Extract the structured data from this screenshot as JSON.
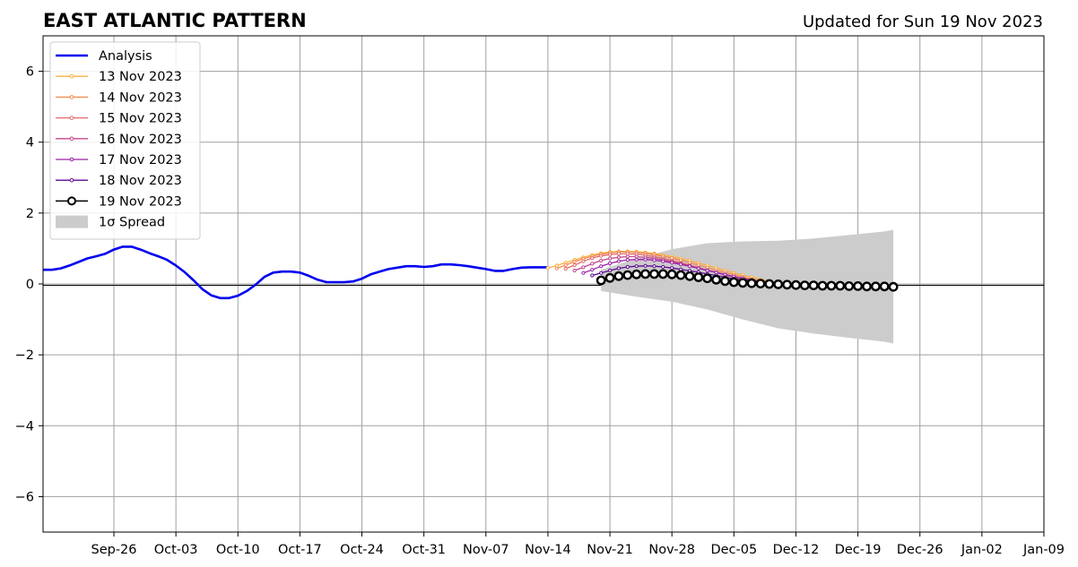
{
  "chart_data": {
    "type": "line",
    "title": "EAST ATLANTIC PATTERN",
    "subtitle": "Updated for Sun 19 Nov 2023",
    "xlim": [
      "2023-09-18",
      "2024-01-09"
    ],
    "ylim": [
      -7,
      7
    ],
    "x_ticks": [
      "Sep-26",
      "Oct-03",
      "Oct-10",
      "Oct-17",
      "Oct-24",
      "Oct-31",
      "Nov-07",
      "Nov-14",
      "Nov-21",
      "Nov-28",
      "Dec-05",
      "Dec-12",
      "Dec-19",
      "Dec-26",
      "Jan-02",
      "Jan-09"
    ],
    "y_ticks": [
      6,
      4,
      2,
      0,
      -2,
      -4,
      -6
    ],
    "y_tick_labels": [
      "6",
      "4",
      "2",
      "0",
      "−2",
      "−4",
      "−6"
    ],
    "grid": true,
    "legend": {
      "position": "top-left",
      "entries": [
        "Analysis",
        "13 Nov 2023",
        "14 Nov 2023",
        "15 Nov 2023",
        "16 Nov 2023",
        "17 Nov 2023",
        "18 Nov 2023",
        "19 Nov 2023",
        "1σ Spread"
      ]
    },
    "colors": {
      "analysis": "#0000ee",
      "f13": "#fbb040",
      "f14": "#f3894e",
      "f15": "#e26a6a",
      "f16": "#c2478e",
      "f17": "#9b22a8",
      "f18": "#5c0a91",
      "f19": "#000000",
      "spread": "#cccccc",
      "grid": "#a0a0a0"
    },
    "analysis": {
      "x": [
        "2023-09-18",
        "2023-09-19",
        "2023-09-20",
        "2023-09-21",
        "2023-09-22",
        "2023-09-23",
        "2023-09-24",
        "2023-09-25",
        "2023-09-26",
        "2023-09-27",
        "2023-09-28",
        "2023-09-29",
        "2023-09-30",
        "2023-10-01",
        "2023-10-02",
        "2023-10-03",
        "2023-10-04",
        "2023-10-05",
        "2023-10-06",
        "2023-10-07",
        "2023-10-08",
        "2023-10-09",
        "2023-10-10",
        "2023-10-11",
        "2023-10-12",
        "2023-10-13",
        "2023-10-14",
        "2023-10-15",
        "2023-10-16",
        "2023-10-17",
        "2023-10-18",
        "2023-10-19",
        "2023-10-20",
        "2023-10-21",
        "2023-10-22",
        "2023-10-23",
        "2023-10-24",
        "2023-10-25",
        "2023-10-26",
        "2023-10-27",
        "2023-10-28",
        "2023-10-29",
        "2023-10-30",
        "2023-10-31",
        "2023-11-01",
        "2023-11-02",
        "2023-11-03",
        "2023-11-04",
        "2023-11-05",
        "2023-11-06",
        "2023-11-07",
        "2023-11-08",
        "2023-11-09",
        "2023-11-10",
        "2023-11-11",
        "2023-11-12",
        "2023-11-13",
        "2023-11-14"
      ],
      "y": [
        0.4,
        0.4,
        0.44,
        0.52,
        0.62,
        0.72,
        0.78,
        0.85,
        0.97,
        1.05,
        1.05,
        0.97,
        0.87,
        0.78,
        0.68,
        0.52,
        0.33,
        0.1,
        -0.15,
        -0.32,
        -0.4,
        -0.4,
        -0.33,
        -0.2,
        -0.02,
        0.2,
        0.32,
        0.35,
        0.35,
        0.32,
        0.23,
        0.12,
        0.05,
        0.05,
        0.05,
        0.07,
        0.15,
        0.27,
        0.35,
        0.42,
        0.46,
        0.5,
        0.5,
        0.48,
        0.5,
        0.55,
        0.55,
        0.53,
        0.5,
        0.46,
        0.42,
        0.37,
        0.37,
        0.42,
        0.46,
        0.47,
        0.47,
        0.47
      ]
    },
    "series": [
      {
        "name": "13 Nov 2023",
        "start": "2023-11-14",
        "y": [
          0.45,
          0.52,
          0.6,
          0.68,
          0.75,
          0.82,
          0.87,
          0.9,
          0.92,
          0.92,
          0.91,
          0.89,
          0.86,
          0.82,
          0.77,
          0.72,
          0.66,
          0.59,
          0.52,
          0.45,
          0.38,
          0.31,
          0.25,
          0.19,
          0.13,
          0.08,
          0.04
        ]
      },
      {
        "name": "14 Nov 2023",
        "start": "2023-11-15",
        "y": [
          0.44,
          0.53,
          0.63,
          0.71,
          0.78,
          0.84,
          0.88,
          0.9,
          0.9,
          0.89,
          0.86,
          0.83,
          0.78,
          0.73,
          0.67,
          0.6,
          0.53,
          0.46,
          0.39,
          0.32,
          0.26,
          0.2,
          0.14,
          0.09,
          0.05,
          0.02
        ]
      },
      {
        "name": "15 Nov 2023",
        "start": "2023-11-16",
        "y": [
          0.43,
          0.53,
          0.64,
          0.73,
          0.79,
          0.83,
          0.85,
          0.85,
          0.84,
          0.81,
          0.77,
          0.72,
          0.66,
          0.6,
          0.53,
          0.46,
          0.39,
          0.32,
          0.25,
          0.19,
          0.14,
          0.09,
          0.05,
          0.02,
          0.0
        ]
      },
      {
        "name": "16 Nov 2023",
        "start": "2023-11-17",
        "y": [
          0.38,
          0.47,
          0.57,
          0.66,
          0.72,
          0.75,
          0.77,
          0.77,
          0.75,
          0.72,
          0.68,
          0.63,
          0.57,
          0.51,
          0.45,
          0.39,
          0.33,
          0.27,
          0.21,
          0.16,
          0.11,
          0.07,
          0.04,
          0.02
        ]
      },
      {
        "name": "17 Nov 2023",
        "start": "2023-11-18",
        "y": [
          0.31,
          0.4,
          0.5,
          0.58,
          0.64,
          0.68,
          0.69,
          0.69,
          0.67,
          0.64,
          0.6,
          0.55,
          0.5,
          0.44,
          0.38,
          0.32,
          0.26,
          0.21,
          0.16,
          0.11,
          0.07,
          0.04,
          0.02
        ]
      },
      {
        "name": "18 Nov 2023",
        "start": "2023-11-19",
        "y": [
          0.24,
          0.31,
          0.38,
          0.44,
          0.48,
          0.5,
          0.51,
          0.5,
          0.48,
          0.45,
          0.41,
          0.37,
          0.33,
          0.28,
          0.24,
          0.19,
          0.15,
          0.11,
          0.08,
          0.05,
          0.03,
          0.01
        ]
      },
      {
        "name": "19 Nov 2023",
        "start": "2023-11-20",
        "y": [
          0.1,
          0.17,
          0.22,
          0.25,
          0.27,
          0.28,
          0.28,
          0.28,
          0.27,
          0.25,
          0.22,
          0.19,
          0.16,
          0.12,
          0.08,
          0.05,
          0.03,
          0.02,
          0.01,
          0.0,
          -0.01,
          -0.02,
          -0.03,
          -0.04,
          -0.04,
          -0.05,
          -0.05,
          -0.05,
          -0.06,
          -0.06,
          -0.07,
          -0.07,
          -0.07,
          -0.08
        ]
      }
    ],
    "spread": {
      "x": [
        "2023-11-20",
        "2023-11-24",
        "2023-11-28",
        "2023-12-02",
        "2023-12-06",
        "2023-12-10",
        "2023-12-14",
        "2023-12-18",
        "2023-12-22",
        "2023-12-23"
      ],
      "upper": [
        0.4,
        0.72,
        0.98,
        1.15,
        1.2,
        1.22,
        1.28,
        1.38,
        1.48,
        1.53
      ],
      "lower": [
        -0.2,
        -0.36,
        -0.5,
        -0.72,
        -1.0,
        -1.25,
        -1.4,
        -1.52,
        -1.63,
        -1.68
      ]
    }
  }
}
